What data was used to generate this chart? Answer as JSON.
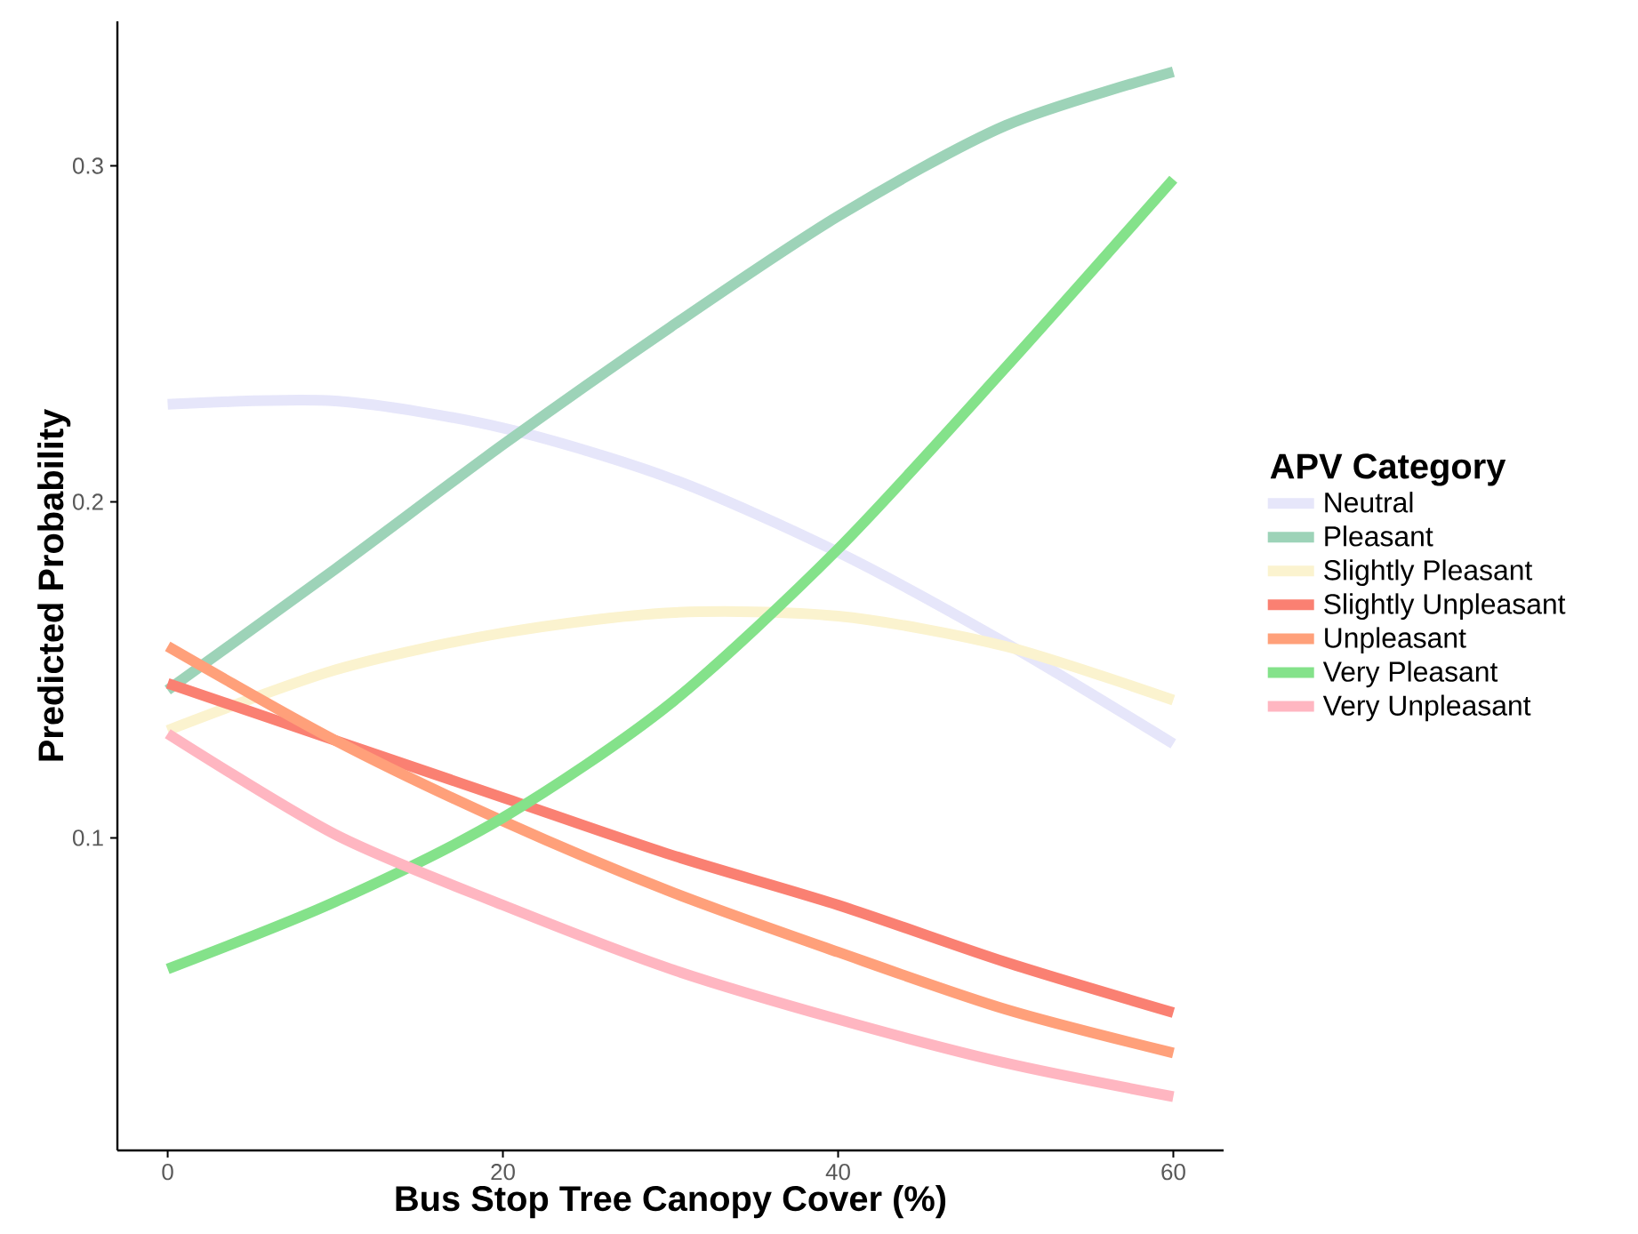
{
  "chart_data": {
    "type": "line",
    "xlabel": "Bus Stop Tree Canopy Cover (%)",
    "ylabel": "Predicted Probability",
    "legend_title": "APV Category",
    "legend": "right",
    "grid": false,
    "marker": "none",
    "line_style": "solid",
    "x": [
      0,
      10,
      20,
      30,
      40,
      50,
      60
    ],
    "xlim": [
      -3,
      63
    ],
    "ylim": [
      0.007,
      0.343
    ],
    "xticks": [
      0,
      20,
      40,
      60
    ],
    "yticks": [
      0.1,
      0.2,
      0.3
    ],
    "series": [
      {
        "name": "Neutral",
        "color": "#e6e6fa",
        "values": [
          0.229,
          0.23,
          0.222,
          0.207,
          0.185,
          0.158,
          0.128
        ]
      },
      {
        "name": "Pleasant",
        "color": "#9dd3b8",
        "values": [
          0.144,
          0.18,
          0.217,
          0.252,
          0.285,
          0.312,
          0.328
        ]
      },
      {
        "name": "Slightly Pleasant",
        "color": "#fbf3cf",
        "values": [
          0.132,
          0.15,
          0.161,
          0.167,
          0.166,
          0.157,
          0.141
        ]
      },
      {
        "name": "Slightly Unpleasant",
        "color": "#fa8072",
        "values": [
          0.146,
          0.129,
          0.112,
          0.095,
          0.08,
          0.063,
          0.048
        ]
      },
      {
        "name": "Unpleasant",
        "color": "#ffa07a",
        "values": [
          0.157,
          0.129,
          0.105,
          0.084,
          0.066,
          0.049,
          0.036
        ]
      },
      {
        "name": "Very Pleasant",
        "color": "#84e28a",
        "values": [
          0.061,
          0.081,
          0.106,
          0.14,
          0.186,
          0.24,
          0.296
        ]
      },
      {
        "name": "Very Unpleasant",
        "color": "#ffb6c1",
        "values": [
          0.131,
          0.101,
          0.08,
          0.061,
          0.046,
          0.033,
          0.023
        ]
      }
    ]
  }
}
